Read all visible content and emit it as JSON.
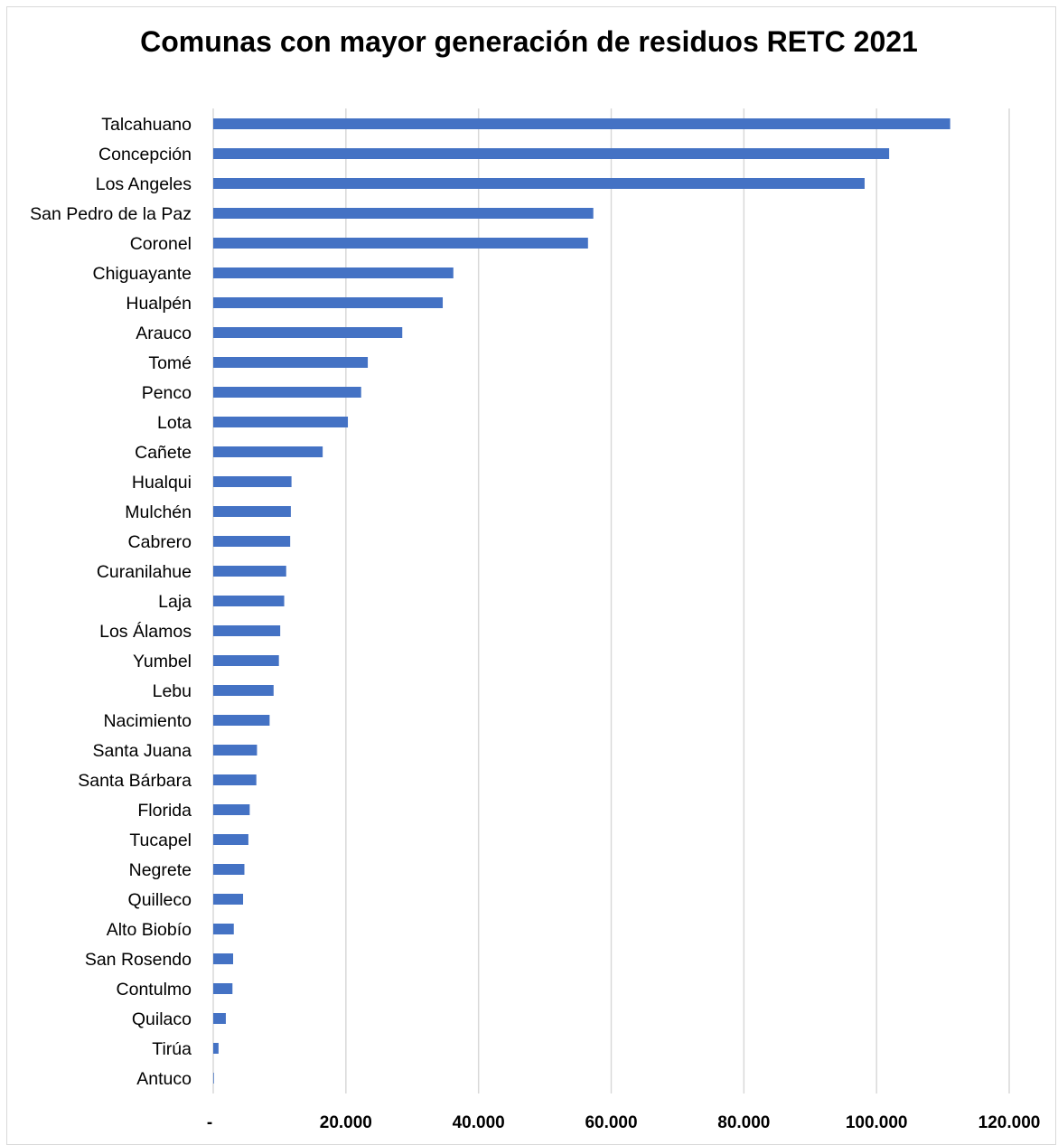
{
  "chart_data": {
    "type": "bar",
    "orientation": "horizontal",
    "title": "Comunas con mayor generación de residuos RETC 2021",
    "xlabel": "",
    "ylabel": "",
    "xlim": [
      0,
      120000
    ],
    "tick_values": [
      0,
      20000,
      40000,
      60000,
      80000,
      100000,
      120000
    ],
    "tick_labels": [
      "-",
      "20.000",
      "40.000",
      "60.000",
      "80.000",
      "100.000",
      "120.000"
    ],
    "grid": "vertical",
    "legend": "none",
    "bar_color": "#4472c4",
    "categories": [
      "Talcahuano",
      "Concepción",
      "Los Angeles",
      "San Pedro de la Paz",
      "Coronel",
      "Chiguayante",
      "Hualpén",
      "Arauco",
      "Tomé",
      "Penco",
      "Lota",
      "Cañete",
      "Hualqui",
      "Mulchén",
      "Cabrero",
      "Curanilahue",
      "Laja",
      "Los Álamos",
      "Yumbel",
      "Lebu",
      "Nacimiento",
      "Santa Juana",
      "Santa Bárbara",
      "Florida",
      "Tucapel",
      "Negrete",
      "Quilleco",
      "Alto Biobío",
      "San Rosendo",
      "Contulmo",
      "Quilaco",
      "Tirúa",
      "Antuco"
    ],
    "values": [
      111100,
      101900,
      98200,
      57300,
      56500,
      36200,
      34600,
      28500,
      23300,
      22300,
      20300,
      16500,
      11800,
      11700,
      11600,
      11000,
      10700,
      10100,
      9900,
      9100,
      8500,
      6600,
      6500,
      5500,
      5300,
      4700,
      4500,
      3100,
      3000,
      2900,
      1900,
      800,
      100
    ]
  }
}
